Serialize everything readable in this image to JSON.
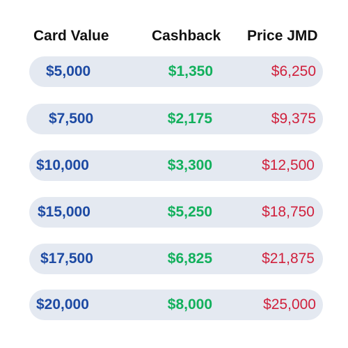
{
  "headers": {
    "card_value": "Card Value",
    "cashback": "Cashback",
    "price": "Price JMD"
  },
  "rows": [
    {
      "value": "$5,000",
      "cashback": "$1,350",
      "price": "$6,250"
    },
    {
      "value": "$7,500",
      "cashback": "$2,175",
      "price": "$9,375"
    },
    {
      "value": "$10,000",
      "cashback": "$3,300",
      "price": "$12,500"
    },
    {
      "value": "$15,000",
      "cashback": "$5,250",
      "price": "$18,750"
    },
    {
      "value": "$17,500",
      "cashback": "$6,825",
      "price": "$21,875"
    },
    {
      "value": "$20,000",
      "cashback": "$8,000",
      "price": "$25,000"
    }
  ],
  "colors": {
    "value_text": "#1d4aa3",
    "cashback_text": "#12b05c",
    "price_text": "#d0203c",
    "row_background": "#e4e9f1"
  }
}
